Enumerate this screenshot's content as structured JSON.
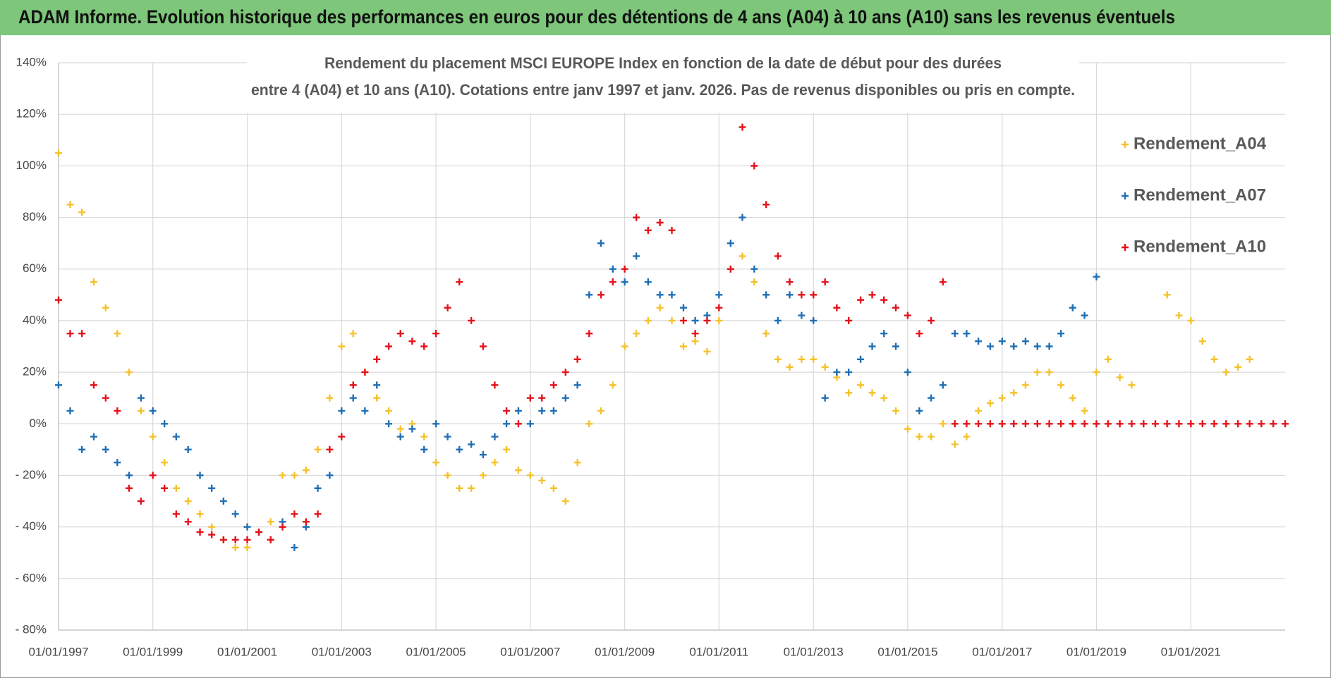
{
  "header": {
    "title": "ADAM Informe. Evolution historique des performances en euros pour des détentions de 4 ans (A04) à 10 ans (A10) sans les revenus éventuels"
  },
  "chart_data": {
    "type": "scatter",
    "title": [
      "Rendement du placement MSCI EUROPE Index en fonction de la date de début pour des durées",
      "entre 4 (A04) et 10 ans (A10). Cotations entre janv 1997 et janv. 2026. Pas de revenus disponibles ou pris en compte."
    ],
    "xlim": [
      "1997-01-01",
      "2023-01-01"
    ],
    "xticks": [
      {
        "value": "1997-01-01",
        "label": "01/01/1997"
      },
      {
        "value": "1999-01-01",
        "label": "01/01/1999"
      },
      {
        "value": "2001-01-01",
        "label": "01/01/2001"
      },
      {
        "value": "2003-01-01",
        "label": "01/01/2003"
      },
      {
        "value": "2005-01-01",
        "label": "01/01/2005"
      },
      {
        "value": "2007-01-01",
        "label": "01/01/2007"
      },
      {
        "value": "2009-01-01",
        "label": "01/01/2009"
      },
      {
        "value": "2011-01-01",
        "label": "01/01/2011"
      },
      {
        "value": "2013-01-01",
        "label": "01/01/2013"
      },
      {
        "value": "2015-01-01",
        "label": "01/01/2015"
      },
      {
        "value": "2017-01-01",
        "label": "01/01/2017"
      },
      {
        "value": "2019-01-01",
        "label": "01/01/2019"
      },
      {
        "value": "2021-01-01",
        "label": "01/01/2021"
      }
    ],
    "ylim": [
      -80,
      140
    ],
    "yticks": [
      {
        "value": -80,
        "label": "- 80%"
      },
      {
        "value": -60,
        "label": "- 60%"
      },
      {
        "value": -40,
        "label": "- 40%"
      },
      {
        "value": -20,
        "label": "- 20%"
      },
      {
        "value": 0,
        "label": "0%"
      },
      {
        "value": 20,
        "label": "20%"
      },
      {
        "value": 40,
        "label": "40%"
      },
      {
        "value": 60,
        "label": "60%"
      },
      {
        "value": 80,
        "label": "80%"
      },
      {
        "value": 100,
        "label": "100%"
      },
      {
        "value": 120,
        "label": "120%"
      },
      {
        "value": 140,
        "label": "140%"
      }
    ],
    "grid": true,
    "legend": "right",
    "series": [
      {
        "name": "Rendement_A04",
        "color": "#f5c22b",
        "x": [
          "1997-01-01",
          "1997-04-01",
          "1997-07-01",
          "1997-10-01",
          "1998-01-01",
          "1998-04-01",
          "1998-07-01",
          "1998-10-01",
          "1999-01-01",
          "1999-04-01",
          "1999-07-01",
          "1999-10-01",
          "2000-01-01",
          "2000-04-01",
          "2000-07-01",
          "2000-10-01",
          "2001-01-01",
          "2001-04-01",
          "2001-07-01",
          "2001-10-01",
          "2002-01-01",
          "2002-04-01",
          "2002-07-01",
          "2002-10-01",
          "2003-01-01",
          "2003-04-01",
          "2003-07-01",
          "2003-10-01",
          "2004-01-01",
          "2004-04-01",
          "2004-07-01",
          "2004-10-01",
          "2005-01-01",
          "2005-04-01",
          "2005-07-01",
          "2005-10-01",
          "2006-01-01",
          "2006-04-01",
          "2006-07-01",
          "2006-10-01",
          "2007-01-01",
          "2007-04-01",
          "2007-07-01",
          "2007-10-01",
          "2008-01-01",
          "2008-04-01",
          "2008-07-01",
          "2008-10-01",
          "2009-01-01",
          "2009-04-01",
          "2009-07-01",
          "2009-10-01",
          "2010-01-01",
          "2010-04-01",
          "2010-07-01",
          "2010-10-01",
          "2011-01-01",
          "2011-04-01",
          "2011-07-01",
          "2011-10-01",
          "2012-01-01",
          "2012-04-01",
          "2012-07-01",
          "2012-10-01",
          "2013-01-01",
          "2013-04-01",
          "2013-07-01",
          "2013-10-01",
          "2014-01-01",
          "2014-04-01",
          "2014-07-01",
          "2014-10-01",
          "2015-01-01",
          "2015-04-01",
          "2015-07-01",
          "2015-10-01",
          "2016-01-01",
          "2016-04-01",
          "2016-07-01",
          "2016-10-01",
          "2017-01-01",
          "2017-04-01",
          "2017-07-01",
          "2017-10-01",
          "2018-01-01",
          "2018-04-01",
          "2018-07-01",
          "2018-10-01",
          "2019-01-01",
          "2019-04-01",
          "2019-07-01",
          "2019-10-01",
          "2020-07-01",
          "2020-10-01",
          "2021-01-01",
          "2021-04-01",
          "2021-07-01",
          "2021-10-01",
          "2022-01-01",
          "2022-04-01"
        ],
        "values": [
          105,
          85,
          82,
          55,
          45,
          35,
          20,
          5,
          -5,
          -15,
          -25,
          -30,
          -35,
          -40,
          -45,
          -48,
          -48,
          -42,
          -38,
          -20,
          -20,
          -18,
          -10,
          10,
          30,
          35,
          20,
          10,
          5,
          -2,
          0,
          -5,
          -15,
          -20,
          -25,
          -25,
          -20,
          -15,
          -10,
          -18,
          -20,
          -22,
          -25,
          -30,
          -15,
          0,
          5,
          15,
          30,
          35,
          40,
          45,
          40,
          30,
          32,
          28,
          40,
          60,
          65,
          55,
          35,
          25,
          22,
          25,
          25,
          22,
          18,
          12,
          15,
          12,
          10,
          5,
          -2,
          -5,
          -5,
          0,
          -8,
          -5,
          5,
          8,
          10,
          12,
          15,
          20,
          20,
          15,
          10,
          5,
          20,
          25,
          18,
          15,
          50,
          42,
          40,
          32,
          25,
          20,
          22,
          25
        ]
      },
      {
        "name": "Rendement_A07",
        "color": "#1f6fb5",
        "x": [
          "1997-01-01",
          "1997-04-01",
          "1997-07-01",
          "1997-10-01",
          "1998-01-01",
          "1998-04-01",
          "1998-07-01",
          "1998-10-01",
          "1999-01-01",
          "1999-04-01",
          "1999-07-01",
          "1999-10-01",
          "2000-01-01",
          "2000-04-01",
          "2000-07-01",
          "2000-10-01",
          "2001-01-01",
          "2001-04-01",
          "2001-07-01",
          "2001-10-01",
          "2002-01-01",
          "2002-04-01",
          "2002-07-01",
          "2002-10-01",
          "2003-01-01",
          "2003-04-01",
          "2003-07-01",
          "2003-10-01",
          "2004-01-01",
          "2004-04-01",
          "2004-07-01",
          "2004-10-01",
          "2005-01-01",
          "2005-04-01",
          "2005-07-01",
          "2005-10-01",
          "2006-01-01",
          "2006-04-01",
          "2006-07-01",
          "2006-10-01",
          "2007-01-01",
          "2007-04-01",
          "2007-07-01",
          "2007-10-01",
          "2008-01-01",
          "2008-04-01",
          "2008-07-01",
          "2008-10-01",
          "2009-01-01",
          "2009-04-01",
          "2009-07-01",
          "2009-10-01",
          "2010-01-01",
          "2010-04-01",
          "2010-07-01",
          "2010-10-01",
          "2011-01-01",
          "2011-04-01",
          "2011-07-01",
          "2011-10-01",
          "2012-01-01",
          "2012-04-01",
          "2012-07-01",
          "2012-10-01",
          "2013-01-01",
          "2013-04-01",
          "2013-07-01",
          "2013-10-01",
          "2014-01-01",
          "2014-04-01",
          "2014-07-01",
          "2014-10-01",
          "2015-01-01",
          "2015-04-01",
          "2015-07-01",
          "2015-10-01",
          "2016-01-01",
          "2016-04-01",
          "2016-07-01",
          "2016-10-01",
          "2017-01-01",
          "2017-04-01",
          "2017-07-01",
          "2017-10-01",
          "2018-01-01",
          "2018-04-01",
          "2018-07-01",
          "2018-10-01",
          "2019-01-01"
        ],
        "values": [
          15,
          5,
          -10,
          -5,
          -10,
          -15,
          -20,
          10,
          5,
          0,
          -5,
          -10,
          -20,
          -25,
          -30,
          -35,
          -40,
          -42,
          -45,
          -38,
          -48,
          -40,
          -25,
          -20,
          5,
          10,
          5,
          15,
          0,
          -5,
          -2,
          -10,
          0,
          -5,
          -10,
          -8,
          -12,
          -5,
          0,
          5,
          0,
          5,
          5,
          10,
          15,
          50,
          70,
          60,
          55,
          65,
          55,
          50,
          50,
          45,
          40,
          42,
          50,
          70,
          80,
          60,
          50,
          40,
          50,
          42,
          40,
          10,
          20,
          20,
          25,
          30,
          35,
          30,
          20,
          5,
          10,
          15,
          35,
          35,
          32,
          30,
          32,
          30,
          32,
          30,
          30,
          35,
          45,
          42,
          57
        ]
      },
      {
        "name": "Rendement_A10",
        "color": "#e5121b",
        "x": [
          "1997-01-01",
          "1997-04-01",
          "1997-07-01",
          "1997-10-01",
          "1998-01-01",
          "1998-04-01",
          "1998-07-01",
          "1998-10-01",
          "1999-01-01",
          "1999-04-01",
          "1999-07-01",
          "1999-10-01",
          "2000-01-01",
          "2000-04-01",
          "2000-07-01",
          "2000-10-01",
          "2001-01-01",
          "2001-04-01",
          "2001-07-01",
          "2001-10-01",
          "2002-01-01",
          "2002-04-01",
          "2002-07-01",
          "2002-10-01",
          "2003-01-01",
          "2003-04-01",
          "2003-07-01",
          "2003-10-01",
          "2004-01-01",
          "2004-04-01",
          "2004-07-01",
          "2004-10-01",
          "2005-01-01",
          "2005-04-01",
          "2005-07-01",
          "2005-10-01",
          "2006-01-01",
          "2006-04-01",
          "2006-07-01",
          "2006-10-01",
          "2007-01-01",
          "2007-04-01",
          "2007-07-01",
          "2007-10-01",
          "2008-01-01",
          "2008-04-01",
          "2008-07-01",
          "2008-10-01",
          "2009-01-01",
          "2009-04-01",
          "2009-07-01",
          "2009-10-01",
          "2010-01-01",
          "2010-04-01",
          "2010-07-01",
          "2010-10-01",
          "2011-01-01",
          "2011-04-01",
          "2011-07-01",
          "2011-10-01",
          "2012-01-01",
          "2012-04-01",
          "2012-07-01",
          "2012-10-01",
          "2013-01-01",
          "2013-04-01",
          "2013-07-01",
          "2013-10-01",
          "2014-01-01",
          "2014-04-01",
          "2014-07-01",
          "2014-10-01",
          "2015-01-01",
          "2015-04-01",
          "2015-07-01",
          "2015-10-01",
          "2016-01-01",
          "2016-04-01",
          "2016-07-01",
          "2016-10-01",
          "2017-01-01",
          "2017-04-01",
          "2017-07-01",
          "2017-10-01",
          "2018-01-01",
          "2018-04-01",
          "2018-07-01",
          "2018-10-01",
          "2019-01-01",
          "2019-04-01",
          "2019-07-01",
          "2019-10-01",
          "2020-01-01",
          "2020-04-01",
          "2020-07-01",
          "2020-10-01",
          "2021-01-01",
          "2021-04-01",
          "2021-07-01",
          "2021-10-01",
          "2022-01-01",
          "2022-04-01",
          "2022-07-01",
          "2022-10-01",
          "2023-01-01"
        ],
        "values": [
          48,
          35,
          35,
          15,
          10,
          5,
          -25,
          -30,
          -20,
          -25,
          -35,
          -38,
          -42,
          -43,
          -45,
          -45,
          -45,
          -42,
          -45,
          -40,
          -35,
          -38,
          -35,
          -10,
          -5,
          15,
          20,
          25,
          30,
          35,
          32,
          30,
          35,
          45,
          55,
          40,
          30,
          15,
          5,
          0,
          10,
          10,
          15,
          20,
          25,
          35,
          50,
          55,
          60,
          80,
          75,
          78,
          75,
          40,
          35,
          40,
          45,
          60,
          115,
          100,
          85,
          65,
          55,
          50,
          50,
          55,
          45,
          40,
          48,
          50,
          48,
          45,
          42,
          35,
          40,
          55,
          0,
          0,
          0,
          0,
          0,
          0,
          0,
          0,
          0,
          0,
          0,
          0,
          0,
          0,
          0,
          0,
          0,
          0,
          0,
          0,
          0,
          0,
          0,
          0,
          0,
          0,
          0,
          0,
          0
        ]
      }
    ]
  }
}
